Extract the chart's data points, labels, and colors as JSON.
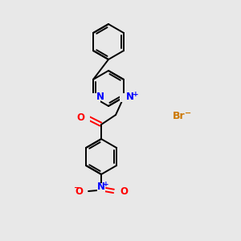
{
  "background_color": "#e8e8e8",
  "bond_color": "#000000",
  "atom_colors": {
    "N": "#0000ff",
    "O": "#ff0000",
    "Br": "#cc7700"
  },
  "figsize": [
    3.0,
    3.0
  ],
  "dpi": 100,
  "lw": 1.4,
  "fs": 8.5
}
